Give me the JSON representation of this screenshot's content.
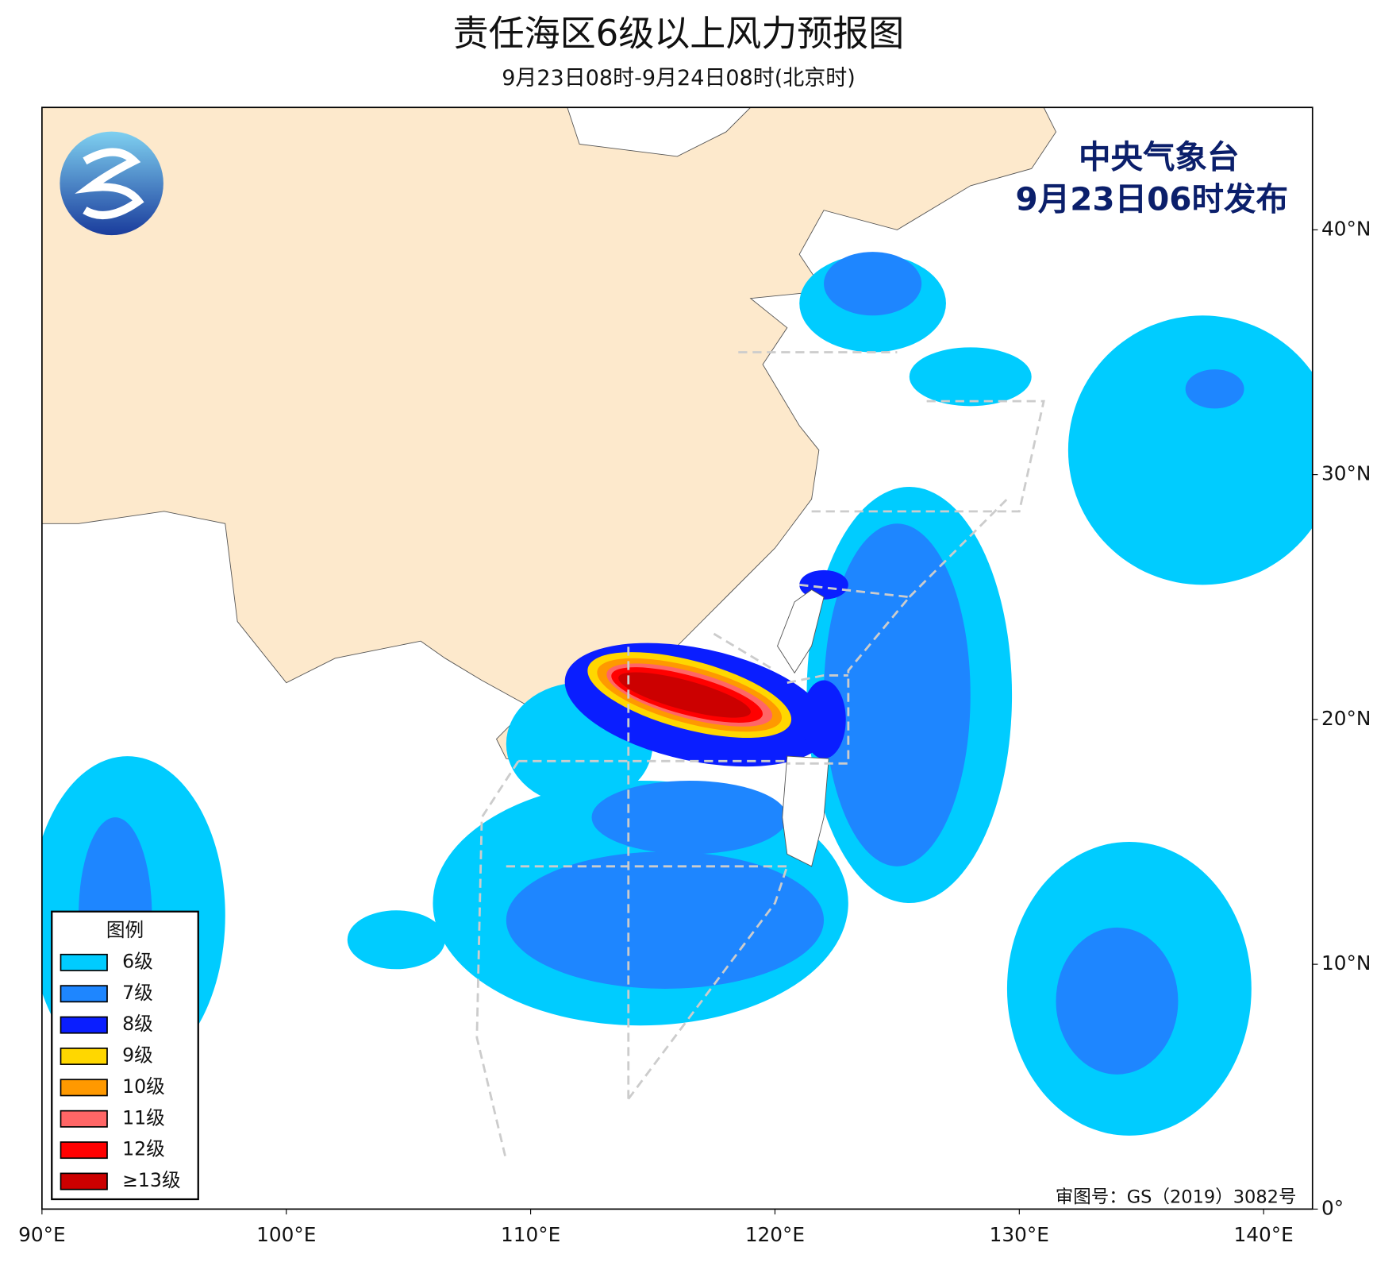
{
  "header": {
    "title": "责任海区6级以上风力预报图",
    "subtitle": "9月23日08时-9月24日08时(北京时)"
  },
  "issuer": {
    "agency": "中央气象台",
    "issued": "9月23日06时发布"
  },
  "map": {
    "xlim": [
      90,
      142
    ],
    "ylim": [
      0,
      45
    ],
    "xticks": [
      {
        "value": 90,
        "label": "90°E"
      },
      {
        "value": 100,
        "label": "100°E"
      },
      {
        "value": 110,
        "label": "110°E"
      },
      {
        "value": 120,
        "label": "120°E"
      },
      {
        "value": 130,
        "label": "130°E"
      },
      {
        "value": 140,
        "label": "140°E"
      }
    ],
    "yticks": [
      {
        "value": 0,
        "label": "0°"
      },
      {
        "value": 10,
        "label": "10°N"
      },
      {
        "value": 20,
        "label": "20°N"
      },
      {
        "value": 30,
        "label": "30°N"
      },
      {
        "value": 40,
        "label": "40°N"
      }
    ]
  },
  "legend": {
    "title": "图例",
    "items": [
      {
        "label": "6级",
        "color": "#00ccff"
      },
      {
        "label": "7级",
        "color": "#1e86ff"
      },
      {
        "label": "8级",
        "color": "#0a1eff"
      },
      {
        "label": "9级",
        "color": "#ffd700"
      },
      {
        "label": "10级",
        "color": "#ff9900"
      },
      {
        "label": "11级",
        "color": "#ff6666"
      },
      {
        "label": "12级",
        "color": "#ff0000"
      },
      {
        "label": "≥13级",
        "color": "#cc0000"
      }
    ]
  },
  "approval": "审图号：GS（2019）3082号"
}
